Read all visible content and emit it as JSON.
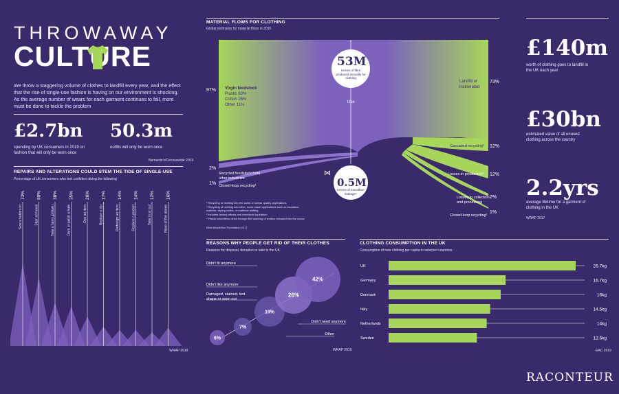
{
  "title": {
    "line1": "THROWAWAY",
    "line2": "CULTURE",
    "intro": "We throw a staggering volume of clothes to landfill every year, and the effect that the rise of single-use fashion is having on our environment is shocking. As the average number of wears for each garment continues to fall, more must be done to tackle the problem"
  },
  "stats_left": [
    {
      "value": "£2.7bn",
      "desc": "spending by UK consumers in 2019 on fashion that will only be worn once"
    },
    {
      "value": "50.3m",
      "desc": "outfits will only be worn once"
    }
  ],
  "stats_left_source": "Barnardo's/Censuswide 2019",
  "repairs": {
    "title": "REPAIRS AND ALTERATIONS COULD STEM THE TIDE OF SINGLE-USE",
    "subtitle": "Percentage of UK consumers who feel confident doing the following",
    "source": "WRAP 2019"
  },
  "material": {
    "title": "MATERIAL FLOWS FOR CLOTHING",
    "subtitle": "Global estimates for material flows in 2015",
    "left_pct": "97%",
    "virgin_title": "Virgin feedstock",
    "virgin_lines": [
      "Plastic 63%",
      "Cotton 26%",
      "Other 11%"
    ],
    "use_label": "Use",
    "center_big": "53M",
    "center_small": "tonnes of fibre produced annually for clothing",
    "landfill_label": "Landfill or incinerated",
    "landfill_pct": "73%",
    "cascaded_label": "Cascaded recycling²",
    "cascaded_pct": "12%",
    "losses_prod_label": "Losses in production³",
    "losses_prod_pct": "12%",
    "losses_coll_label": "Losses in collection and processing",
    "losses_coll_pct": "2%",
    "closed_right_label": "Closed-loop recycling¹",
    "closed_right_pct": "1%",
    "recycled_label": "Recycled feedstock from other industries",
    "recycled_pct": "2%",
    "closed_left_label": "Closed-loop recycling¹",
    "closed_left_pct": "1%",
    "leak_big": "0.5M",
    "leak_small": "tonnes of microfibre leakage⁴",
    "footnotes": [
      "¹ Recycling of clothing into the same or similar quality applications",
      "² Recycling of clothing into other, lower-value applications such as insulation material, wiping cloths, or mattress stuffing",
      "³ Includes factory offcuts and overstock liquidation",
      "⁴ Plastic microfibres shed through the washing of textiles released into the ocean"
    ],
    "source": "Ellen MacArthur Foundation 2017"
  },
  "reasons": {
    "title": "REASONS WHY PEOPLE GET RID OF THEIR CLOTHES",
    "subtitle": "Reasons for disposal, donation or sale in the UK",
    "source": "WRAP 2019"
  },
  "consumption": {
    "title": "CLOTHING CONSUMPTION IN THE UK",
    "subtitle": "Consumption of new clothing per capita in selected countries",
    "source": "EAC 2019"
  },
  "stats_right": [
    {
      "value": "£140m",
      "desc": "worth of clothing goes to landfill in the UK each year"
    },
    {
      "value": "£30bn",
      "desc": "estimated value of all unused clothing across the country"
    },
    {
      "value": "2.2yrs",
      "desc": "average lifetime for a garment of clothing in the UK"
    }
  ],
  "stats_right_source": "WRAP 2017",
  "brand": "RACONTEUR",
  "colors": {
    "background": "#3b2a6b",
    "accent": "#a6d65a",
    "purple_light": "#7d62bd",
    "purple_soft": "#b3a3e0"
  },
  "chart_data": [
    {
      "type": "bar",
      "title": "REPAIRS AND ALTERATIONS COULD STEM THE TIDE OF SINGLE-USE",
      "categories": [
        "Sew a button on",
        "Stain removal",
        "Take a hem up/down",
        "Darn or patch a hole",
        "Dye an item",
        "Replace a zip",
        "Redesign an item",
        "Replace a pocket",
        "Take in or out",
        "None of the above"
      ],
      "values": [
        73,
        60,
        38,
        35,
        26,
        17,
        14,
        14,
        12,
        16
      ],
      "labels": [
        "73%",
        "60%",
        "38%",
        "35%",
        "26%",
        "17%",
        "14%",
        "14%",
        "12%",
        "16%"
      ],
      "ylim": [
        0,
        100
      ]
    },
    {
      "type": "scatter",
      "title": "REASONS WHY PEOPLE GET RID OF THEIR CLOTHES",
      "categories": [
        "Other",
        "Didn't need anymore",
        "Damaged, stained, lost shape or worn out",
        "Didn't like anymore",
        "Didn't fit anymore"
      ],
      "values": [
        6,
        7,
        19,
        26,
        42
      ],
      "labels": [
        "6%",
        "7%",
        "19%",
        "26%",
        "42%"
      ]
    },
    {
      "type": "bar",
      "title": "CLOTHING CONSUMPTION IN THE UK",
      "categories": [
        "UK",
        "Germany",
        "Denmark",
        "Italy",
        "Netherlands",
        "Sweden"
      ],
      "values": [
        26.7,
        16.7,
        16,
        14.5,
        14,
        12.6
      ],
      "labels": [
        "26.7kg",
        "16.7kg",
        "16kg",
        "14.5kg",
        "14kg",
        "12.6kg"
      ],
      "ylabel": "kg",
      "xlim": [
        0,
        30
      ]
    }
  ]
}
